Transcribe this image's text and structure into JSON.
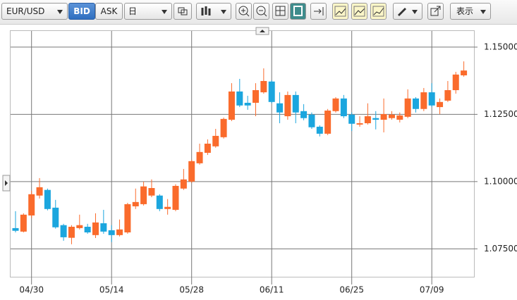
{
  "toolbar": {
    "symbol": "EUR/USD",
    "bid": "BID",
    "ask": "ASK",
    "period": "日",
    "display": "表示"
  },
  "chart_data": {
    "type": "candlestick",
    "categories": [
      null,
      null,
      "04/30",
      null,
      null,
      null,
      null,
      null,
      null,
      null,
      null,
      null,
      "05/14",
      null,
      null,
      null,
      null,
      null,
      null,
      null,
      null,
      null,
      "05/28",
      null,
      null,
      null,
      null,
      null,
      null,
      null,
      null,
      null,
      "06/11",
      null,
      null,
      null,
      null,
      null,
      null,
      null,
      null,
      null,
      "06/25",
      null,
      null,
      null,
      null,
      null,
      null,
      null,
      null,
      null,
      "07/09",
      null,
      null,
      null,
      null
    ],
    "open": [
      1.0827,
      1.0814,
      1.0874,
      1.0948,
      1.0969,
      1.0903,
      1.0838,
      1.0791,
      1.0827,
      1.0832,
      1.0801,
      1.0845,
      1.0819,
      1.0801,
      1.0811,
      1.0908,
      1.0916,
      1.0948,
      1.0948,
      1.0898,
      1.0895,
      1.0974,
      1.1,
      1.1068,
      1.1107,
      1.1131,
      1.1165,
      1.123,
      1.1335,
      1.1293,
      1.1293,
      1.1332,
      1.1372,
      1.1291,
      1.1243,
      1.1322,
      1.1262,
      1.1249,
      1.1204,
      1.1178,
      1.1262,
      1.1309,
      1.1249,
      1.1212,
      1.1217,
      1.1236,
      1.123,
      1.1236,
      1.123,
      1.1241,
      1.1309,
      1.127,
      1.1332,
      1.1277,
      1.1301,
      1.134,
      1.1395
    ],
    "high": [
      1.089,
      1.0882,
      1.0966,
      1.1013,
      1.0974,
      1.0932,
      1.0843,
      1.0838,
      1.0877,
      1.0843,
      1.0882,
      1.0895,
      1.0838,
      1.0859,
      1.0921,
      1.0974,
      1.1,
      1.1008,
      1.0953,
      1.0935,
      1.099,
      1.1047,
      1.1081,
      1.1141,
      1.1157,
      1.1196,
      1.1238,
      1.1366,
      1.1382,
      1.1319,
      1.1366,
      1.1421,
      1.1377,
      1.1332,
      1.1335,
      1.1335,
      1.1288,
      1.1257,
      1.1209,
      1.127,
      1.1314,
      1.1322,
      1.1257,
      1.1243,
      1.1291,
      1.1262,
      1.1309,
      1.1262,
      1.1257,
      1.1343,
      1.1314,
      1.1348,
      1.1366,
      1.1309,
      1.1374,
      1.1408,
      1.1447
    ],
    "low": [
      1.0811,
      1.0811,
      1.0864,
      1.0937,
      1.0893,
      1.0825,
      1.078,
      1.0767,
      1.0822,
      1.0806,
      1.079,
      1.0806,
      1.0775,
      1.0796,
      1.0806,
      1.0898,
      1.0911,
      1.0942,
      1.089,
      1.0877,
      1.089,
      1.0969,
      1.0995,
      1.1063,
      1.1099,
      1.1126,
      1.116,
      1.1225,
      1.1277,
      1.1267,
      1.1243,
      1.1327,
      1.1291,
      1.1217,
      1.123,
      1.1217,
      1.1228,
      1.1196,
      1.1168,
      1.1173,
      1.1257,
      1.1236,
      1.1188,
      1.1204,
      1.1212,
      1.1194,
      1.1183,
      1.123,
      1.122,
      1.1236,
      1.1257,
      1.1262,
      1.1277,
      1.1251,
      1.1296,
      1.1327,
      1.139
    ],
    "close": [
      1.0817,
      1.0877,
      1.0953,
      1.0979,
      1.0898,
      1.083,
      1.0793,
      1.0832,
      1.0838,
      1.0811,
      1.0848,
      1.0814,
      1.0801,
      1.0822,
      1.0916,
      1.0924,
      1.0982,
      1.0976,
      1.0898,
      1.0906,
      1.0984,
      1.1008,
      1.1076,
      1.111,
      1.1141,
      1.117,
      1.1233,
      1.1335,
      1.1283,
      1.1283,
      1.134,
      1.1374,
      1.1296,
      1.1257,
      1.1322,
      1.1257,
      1.1236,
      1.1202,
      1.1178,
      1.1264,
      1.1309,
      1.1243,
      1.1215,
      1.1217,
      1.1243,
      1.123,
      1.1251,
      1.1249,
      1.1246,
      1.1309,
      1.127,
      1.1332,
      1.1283,
      1.1296,
      1.134,
      1.1398,
      1.1413
    ],
    "up_color": "#fa6b2c",
    "down_color": "#1ba6de",
    "ylim": [
      1.0633,
      1.156
    ],
    "yticks": [
      {
        "value": 1.075,
        "label": "1.07500"
      },
      {
        "value": 1.1,
        "label": "1.10000"
      },
      {
        "value": 1.125,
        "label": "1.12500"
      },
      {
        "value": 1.15,
        "label": "1.15000"
      }
    ],
    "grid": true
  }
}
